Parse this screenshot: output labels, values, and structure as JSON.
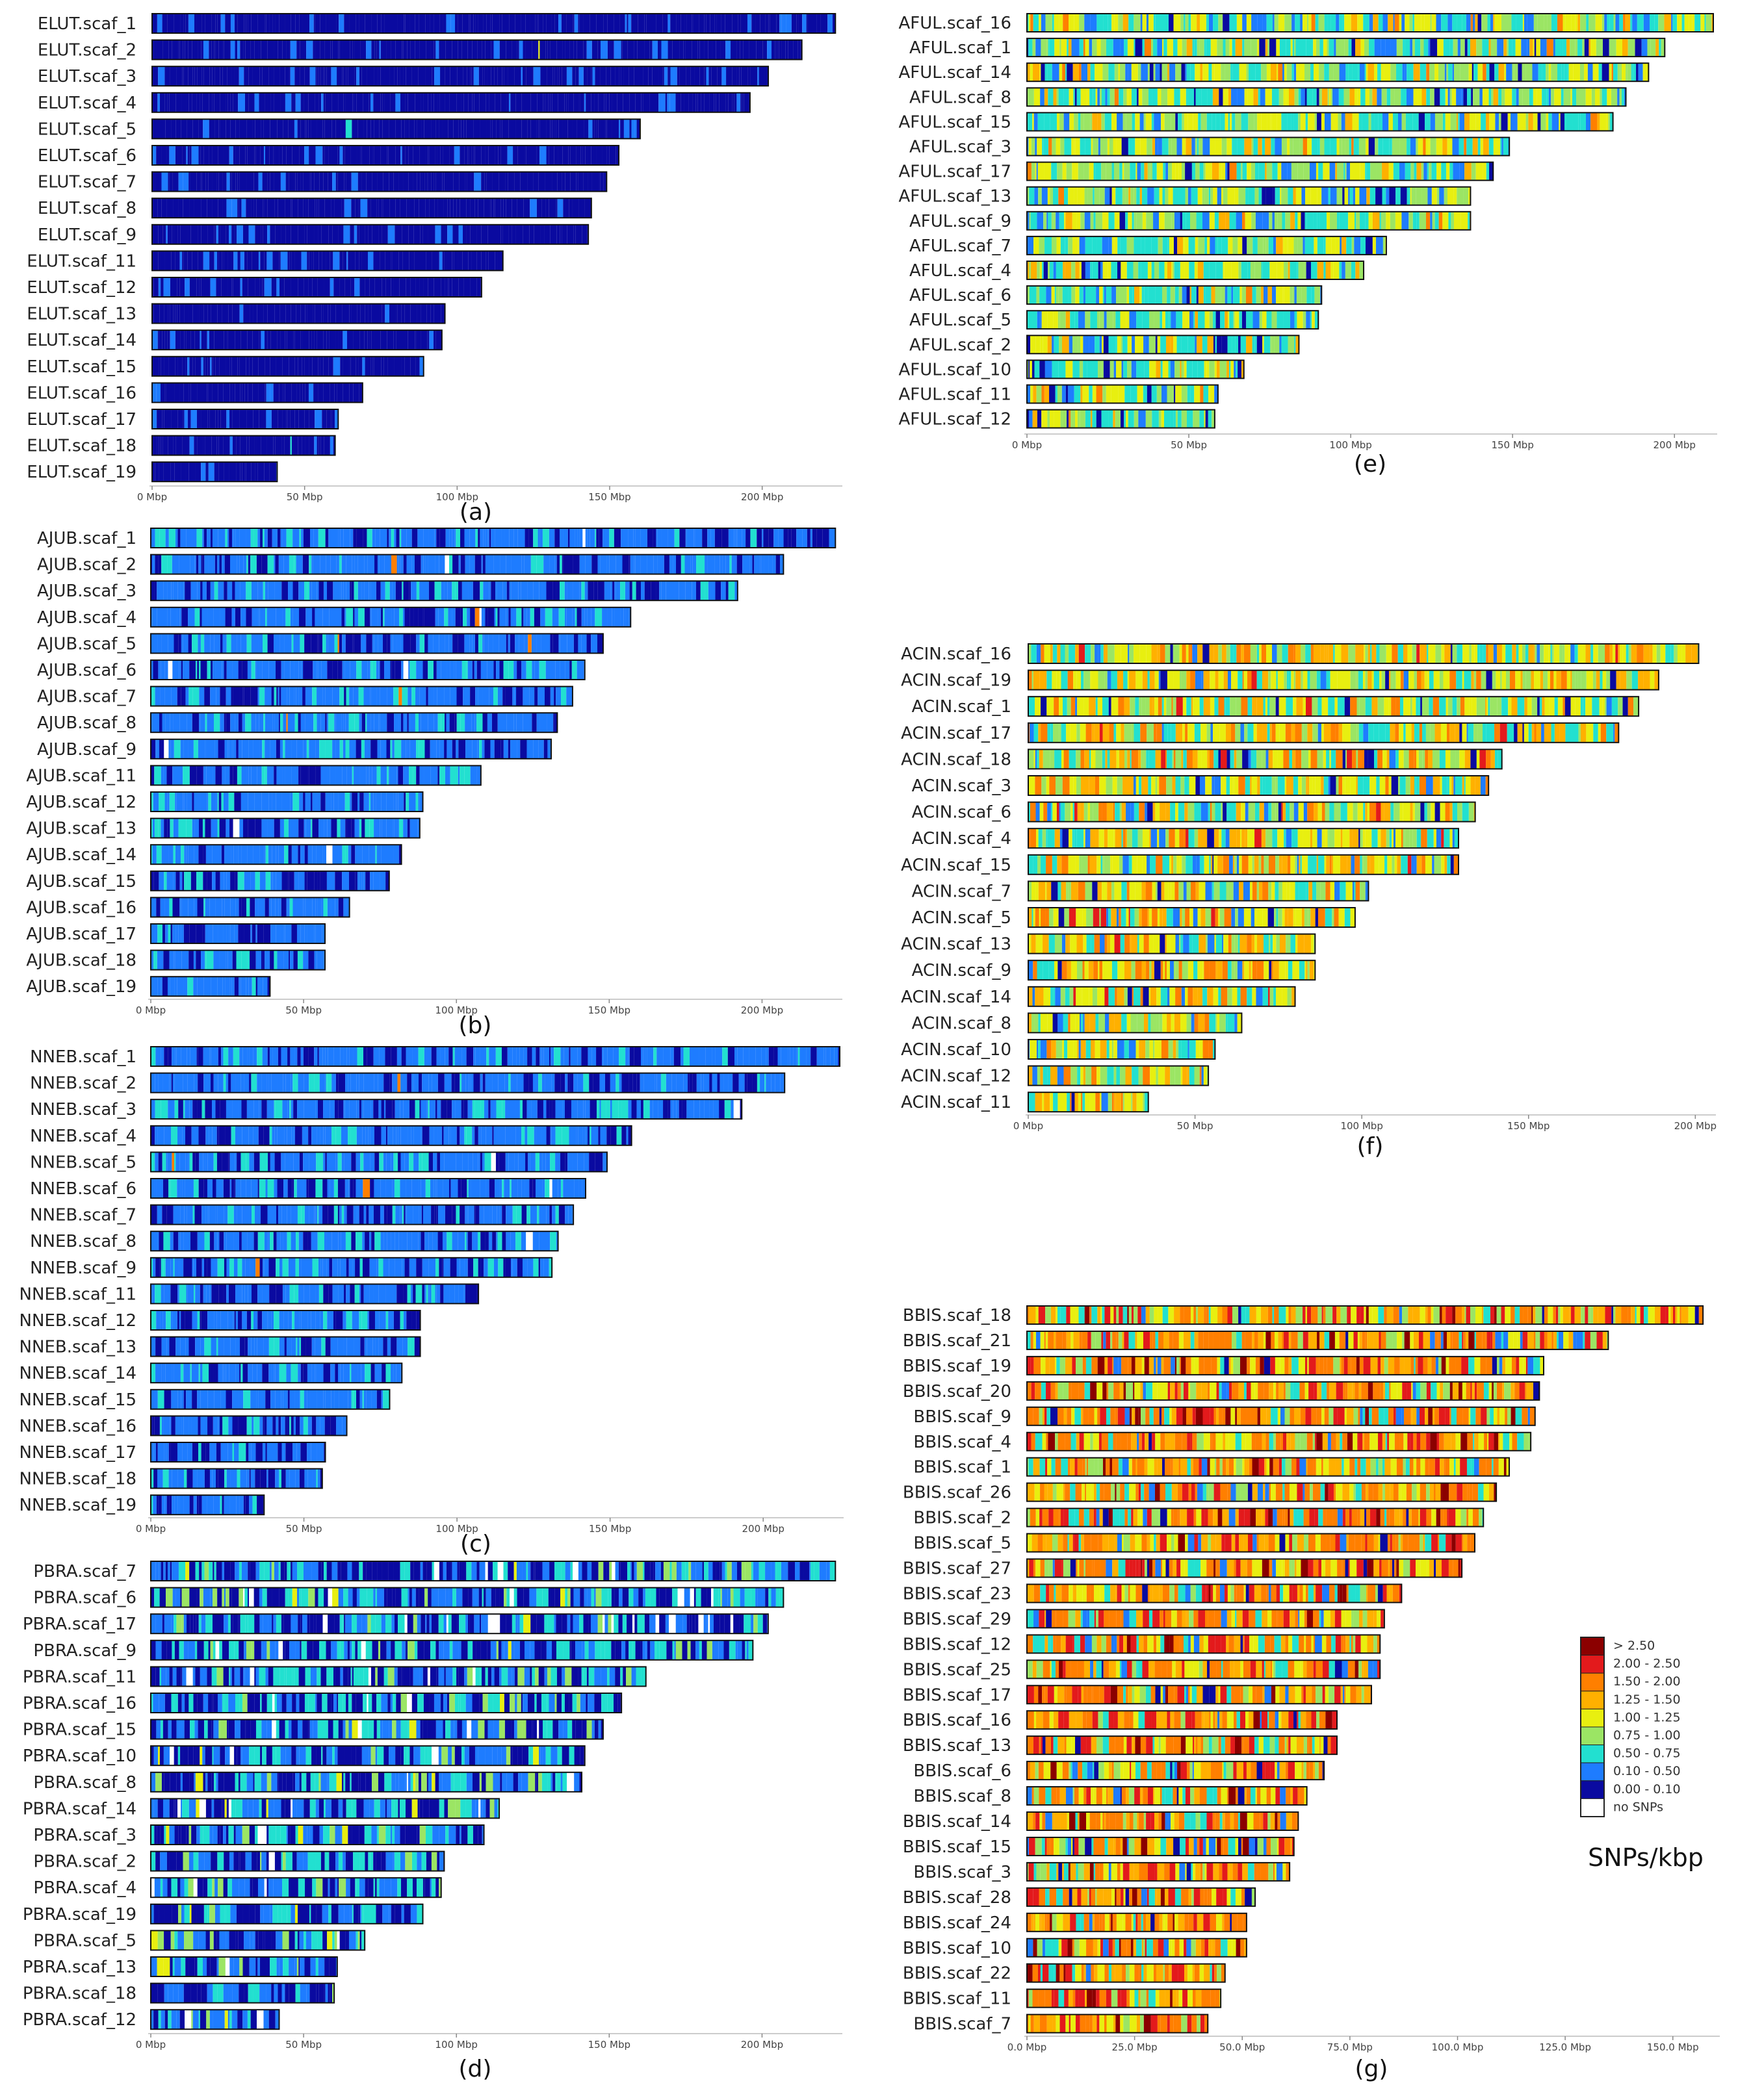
{
  "chart_data": [
    {
      "id": "a",
      "caption": "(a)",
      "type": "heatmap-scaffolds",
      "mode": "low",
      "xticks": [
        "0 Mbp",
        "50 Mbp",
        "100 Mbp",
        "150 Mbp",
        "200 Mbp"
      ],
      "xlim": [
        0,
        225
      ],
      "scaffolds": [
        {
          "name": "ELUT.scaf_1",
          "length": 224
        },
        {
          "name": "ELUT.scaf_2",
          "length": 213
        },
        {
          "name": "ELUT.scaf_3",
          "length": 202
        },
        {
          "name": "ELUT.scaf_4",
          "length": 196
        },
        {
          "name": "ELUT.scaf_5",
          "length": 160
        },
        {
          "name": "ELUT.scaf_6",
          "length": 153
        },
        {
          "name": "ELUT.scaf_7",
          "length": 149
        },
        {
          "name": "ELUT.scaf_8",
          "length": 144
        },
        {
          "name": "ELUT.scaf_9",
          "length": 143
        },
        {
          "name": "ELUT.scaf_11",
          "length": 115
        },
        {
          "name": "ELUT.scaf_12",
          "length": 108
        },
        {
          "name": "ELUT.scaf_13",
          "length": 96
        },
        {
          "name": "ELUT.scaf_14",
          "length": 95
        },
        {
          "name": "ELUT.scaf_15",
          "length": 89
        },
        {
          "name": "ELUT.scaf_16",
          "length": 69
        },
        {
          "name": "ELUT.scaf_17",
          "length": 61
        },
        {
          "name": "ELUT.scaf_18",
          "length": 60
        },
        {
          "name": "ELUT.scaf_19",
          "length": 41
        }
      ]
    },
    {
      "id": "b",
      "caption": "(b)",
      "type": "heatmap-scaffolds",
      "mode": "low2",
      "xticks": [
        "0 Mbp",
        "50 Mbp",
        "100 Mbp",
        "150 Mbp",
        "200 Mbp"
      ],
      "xlim": [
        0,
        225
      ],
      "scaffolds": [
        {
          "name": "AJUB.scaf_1",
          "length": 224
        },
        {
          "name": "AJUB.scaf_2",
          "length": 207
        },
        {
          "name": "AJUB.scaf_3",
          "length": 192
        },
        {
          "name": "AJUB.scaf_4",
          "length": 157
        },
        {
          "name": "AJUB.scaf_5",
          "length": 148
        },
        {
          "name": "AJUB.scaf_6",
          "length": 142
        },
        {
          "name": "AJUB.scaf_7",
          "length": 138
        },
        {
          "name": "AJUB.scaf_8",
          "length": 133
        },
        {
          "name": "AJUB.scaf_9",
          "length": 131
        },
        {
          "name": "AJUB.scaf_11",
          "length": 108
        },
        {
          "name": "AJUB.scaf_12",
          "length": 89
        },
        {
          "name": "AJUB.scaf_13",
          "length": 88
        },
        {
          "name": "AJUB.scaf_14",
          "length": 82
        },
        {
          "name": "AJUB.scaf_15",
          "length": 78
        },
        {
          "name": "AJUB.scaf_16",
          "length": 65
        },
        {
          "name": "AJUB.scaf_17",
          "length": 57
        },
        {
          "name": "AJUB.scaf_18",
          "length": 57
        },
        {
          "name": "AJUB.scaf_19",
          "length": 39
        }
      ]
    },
    {
      "id": "c",
      "caption": "(c)",
      "type": "heatmap-scaffolds",
      "mode": "low2",
      "xticks": [
        "0 Mbp",
        "50 Mbp",
        "100 Mbp",
        "150 Mbp",
        "200 Mbp"
      ],
      "xlim": [
        0,
        225
      ],
      "scaffolds": [
        {
          "name": "NNEB.scaf_1",
          "length": 225
        },
        {
          "name": "NNEB.scaf_2",
          "length": 207
        },
        {
          "name": "NNEB.scaf_3",
          "length": 193
        },
        {
          "name": "NNEB.scaf_4",
          "length": 157
        },
        {
          "name": "NNEB.scaf_5",
          "length": 149
        },
        {
          "name": "NNEB.scaf_6",
          "length": 142
        },
        {
          "name": "NNEB.scaf_7",
          "length": 138
        },
        {
          "name": "NNEB.scaf_8",
          "length": 133
        },
        {
          "name": "NNEB.scaf_9",
          "length": 131
        },
        {
          "name": "NNEB.scaf_11",
          "length": 107
        },
        {
          "name": "NNEB.scaf_12",
          "length": 88
        },
        {
          "name": "NNEB.scaf_13",
          "length": 88
        },
        {
          "name": "NNEB.scaf_14",
          "length": 82
        },
        {
          "name": "NNEB.scaf_15",
          "length": 78
        },
        {
          "name": "NNEB.scaf_16",
          "length": 64
        },
        {
          "name": "NNEB.scaf_17",
          "length": 57
        },
        {
          "name": "NNEB.scaf_18",
          "length": 56
        },
        {
          "name": "NNEB.scaf_19",
          "length": 37
        }
      ]
    },
    {
      "id": "d",
      "caption": "(d)",
      "type": "heatmap-scaffolds",
      "mode": "mixed",
      "xticks": [
        "0 Mbp",
        "50 Mbp",
        "100 Mbp",
        "150 Mbp",
        "200 Mbp"
      ],
      "xlim": [
        0,
        225
      ],
      "scaffolds": [
        {
          "name": "PBRA.scaf_7",
          "length": 224
        },
        {
          "name": "PBRA.scaf_6",
          "length": 207
        },
        {
          "name": "PBRA.scaf_17",
          "length": 202
        },
        {
          "name": "PBRA.scaf_9",
          "length": 197
        },
        {
          "name": "PBRA.scaf_11",
          "length": 162
        },
        {
          "name": "PBRA.scaf_16",
          "length": 154
        },
        {
          "name": "PBRA.scaf_15",
          "length": 148
        },
        {
          "name": "PBRA.scaf_10",
          "length": 142
        },
        {
          "name": "PBRA.scaf_8",
          "length": 141
        },
        {
          "name": "PBRA.scaf_14",
          "length": 114
        },
        {
          "name": "PBRA.scaf_3",
          "length": 109
        },
        {
          "name": "PBRA.scaf_2",
          "length": 96
        },
        {
          "name": "PBRA.scaf_4",
          "length": 95
        },
        {
          "name": "PBRA.scaf_19",
          "length": 89
        },
        {
          "name": "PBRA.scaf_5",
          "length": 70
        },
        {
          "name": "PBRA.scaf_13",
          "length": 61
        },
        {
          "name": "PBRA.scaf_18",
          "length": 60
        },
        {
          "name": "PBRA.scaf_12",
          "length": 42
        }
      ]
    },
    {
      "id": "e",
      "caption": "(e)",
      "type": "heatmap-scaffolds",
      "mode": "mid",
      "xticks": [
        "0 Mbp",
        "50 Mbp",
        "100 Mbp",
        "150 Mbp",
        "200 Mbp"
      ],
      "xlim": [
        0,
        212
      ],
      "scaffolds": [
        {
          "name": "AFUL.scaf_16",
          "length": 212
        },
        {
          "name": "AFUL.scaf_1",
          "length": 197
        },
        {
          "name": "AFUL.scaf_14",
          "length": 192
        },
        {
          "name": "AFUL.scaf_8",
          "length": 185
        },
        {
          "name": "AFUL.scaf_15",
          "length": 181
        },
        {
          "name": "AFUL.scaf_3",
          "length": 149
        },
        {
          "name": "AFUL.scaf_17",
          "length": 144
        },
        {
          "name": "AFUL.scaf_13",
          "length": 137
        },
        {
          "name": "AFUL.scaf_9",
          "length": 137
        },
        {
          "name": "AFUL.scaf_7",
          "length": 111
        },
        {
          "name": "AFUL.scaf_4",
          "length": 104
        },
        {
          "name": "AFUL.scaf_6",
          "length": 91
        },
        {
          "name": "AFUL.scaf_5",
          "length": 90
        },
        {
          "name": "AFUL.scaf_2",
          "length": 84
        },
        {
          "name": "AFUL.scaf_10",
          "length": 67
        },
        {
          "name": "AFUL.scaf_11",
          "length": 59
        },
        {
          "name": "AFUL.scaf_12",
          "length": 58
        }
      ]
    },
    {
      "id": "f",
      "caption": "(f)",
      "type": "heatmap-scaffolds",
      "mode": "midhigh",
      "xticks": [
        "0 Mbp",
        "50 Mbp",
        "100 Mbp",
        "150 Mbp",
        "200 Mbp"
      ],
      "xlim": [
        0,
        205
      ],
      "scaffolds": [
        {
          "name": "ACIN.scaf_16",
          "length": 201
        },
        {
          "name": "ACIN.scaf_19",
          "length": 189
        },
        {
          "name": "ACIN.scaf_1",
          "length": 183
        },
        {
          "name": "ACIN.scaf_17",
          "length": 177
        },
        {
          "name": "ACIN.scaf_18",
          "length": 142
        },
        {
          "name": "ACIN.scaf_3",
          "length": 138
        },
        {
          "name": "ACIN.scaf_6",
          "length": 134
        },
        {
          "name": "ACIN.scaf_4",
          "length": 129
        },
        {
          "name": "ACIN.scaf_15",
          "length": 129
        },
        {
          "name": "ACIN.scaf_7",
          "length": 102
        },
        {
          "name": "ACIN.scaf_5",
          "length": 98
        },
        {
          "name": "ACIN.scaf_13",
          "length": 86
        },
        {
          "name": "ACIN.scaf_9",
          "length": 86
        },
        {
          "name": "ACIN.scaf_14",
          "length": 80
        },
        {
          "name": "ACIN.scaf_8",
          "length": 64
        },
        {
          "name": "ACIN.scaf_10",
          "length": 56
        },
        {
          "name": "ACIN.scaf_12",
          "length": 54
        },
        {
          "name": "ACIN.scaf_11",
          "length": 36
        }
      ]
    },
    {
      "id": "g",
      "caption": "(g)",
      "type": "heatmap-scaffolds",
      "mode": "high",
      "xticks": [
        "0.0 Mbp",
        "25.0 Mbp",
        "50.0 Mbp",
        "75.0 Mbp",
        "100.0 Mbp",
        "125.0 Mbp",
        "150.0 Mbp"
      ],
      "xlim": [
        0,
        160
      ],
      "scaffolds": [
        {
          "name": "BBIS.scaf_18",
          "length": 157
        },
        {
          "name": "BBIS.scaf_21",
          "length": 135
        },
        {
          "name": "BBIS.scaf_19",
          "length": 120
        },
        {
          "name": "BBIS.scaf_20",
          "length": 119
        },
        {
          "name": "BBIS.scaf_9",
          "length": 118
        },
        {
          "name": "BBIS.scaf_4",
          "length": 117
        },
        {
          "name": "BBIS.scaf_1",
          "length": 112
        },
        {
          "name": "BBIS.scaf_26",
          "length": 109
        },
        {
          "name": "BBIS.scaf_2",
          "length": 106
        },
        {
          "name": "BBIS.scaf_5",
          "length": 104
        },
        {
          "name": "BBIS.scaf_27",
          "length": 101
        },
        {
          "name": "BBIS.scaf_23",
          "length": 87
        },
        {
          "name": "BBIS.scaf_29",
          "length": 83
        },
        {
          "name": "BBIS.scaf_12",
          "length": 82
        },
        {
          "name": "BBIS.scaf_25",
          "length": 82
        },
        {
          "name": "BBIS.scaf_17",
          "length": 80
        },
        {
          "name": "BBIS.scaf_16",
          "length": 72
        },
        {
          "name": "BBIS.scaf_13",
          "length": 72
        },
        {
          "name": "BBIS.scaf_6",
          "length": 69
        },
        {
          "name": "BBIS.scaf_8",
          "length": 65
        },
        {
          "name": "BBIS.scaf_14",
          "length": 63
        },
        {
          "name": "BBIS.scaf_15",
          "length": 62
        },
        {
          "name": "BBIS.scaf_3",
          "length": 61
        },
        {
          "name": "BBIS.scaf_28",
          "length": 53
        },
        {
          "name": "BBIS.scaf_24",
          "length": 51
        },
        {
          "name": "BBIS.scaf_10",
          "length": 51
        },
        {
          "name": "BBIS.scaf_22",
          "length": 46
        },
        {
          "name": "BBIS.scaf_11",
          "length": 45
        },
        {
          "name": "BBIS.scaf_7",
          "length": 42
        }
      ]
    }
  ],
  "legend": {
    "title": "SNPs/kbp",
    "entries": [
      {
        "label": "> 2.50",
        "color": "#8b0000"
      },
      {
        "label": "2.00 - 2.50",
        "color": "#e31a1c"
      },
      {
        "label": "1.50 - 2.00",
        "color": "#ff7f00"
      },
      {
        "label": "1.25 - 1.50",
        "color": "#ffb000"
      },
      {
        "label": "1.00 - 1.25",
        "color": "#e8ef10"
      },
      {
        "label": "0.75 - 1.00",
        "color": "#9be564"
      },
      {
        "label": "0.50 - 0.75",
        "color": "#22e0d0"
      },
      {
        "label": "0.10 - 0.50",
        "color": "#1e7cff"
      },
      {
        "label": "0.00 - 0.10",
        "color": "#0a0aa0"
      },
      {
        "label": "no SNPs",
        "color": "#ffffff"
      }
    ]
  }
}
